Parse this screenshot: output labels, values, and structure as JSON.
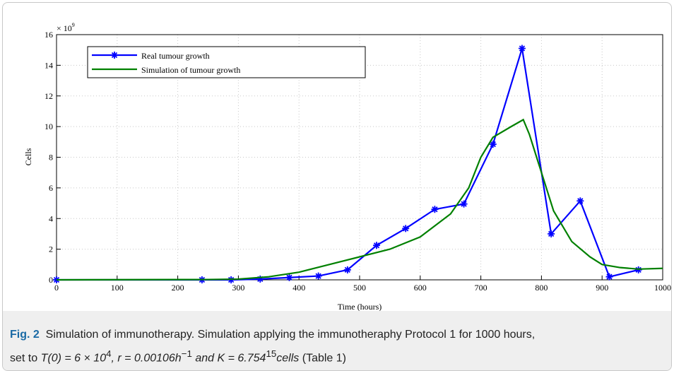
{
  "chart_data": {
    "type": "line",
    "ylabel": "Cells",
    "xlabel": "Time (hours)",
    "y_scale_base": "× 10",
    "y_scale_exp": "9",
    "xlim": [
      0,
      1000
    ],
    "xticks": [
      0,
      100,
      200,
      300,
      400,
      500,
      600,
      700,
      800,
      900,
      1000
    ],
    "ylim": [
      0,
      16
    ],
    "yticks": [
      0,
      2,
      4,
      6,
      8,
      10,
      12,
      14,
      16
    ],
    "grid": true,
    "legend": "upper left",
    "series": [
      {
        "name": "Real tumour growth",
        "color": "#0000ff",
        "marker": "asterisk",
        "x": [
          0,
          240,
          288,
          336,
          384,
          432,
          480,
          528,
          576,
          624,
          672,
          720,
          768,
          816,
          864,
          912,
          960
        ],
        "values": [
          0,
          0,
          0,
          0.05,
          0.15,
          0.25,
          0.65,
          2.25,
          3.35,
          4.6,
          4.95,
          8.85,
          15.1,
          3.0,
          5.15,
          0.2,
          0.65
        ]
      },
      {
        "name": "Simulation of tumour growth",
        "color": "#008000",
        "marker": "none",
        "x": [
          0,
          250,
          300,
          350,
          400,
          450,
          500,
          550,
          600,
          650,
          680,
          700,
          720,
          750,
          770,
          780,
          800,
          820,
          850,
          880,
          900,
          930,
          960,
          1000
        ],
        "values": [
          0,
          0.02,
          0.05,
          0.2,
          0.5,
          1.0,
          1.5,
          2.0,
          2.8,
          4.3,
          6.0,
          8.0,
          9.3,
          10.0,
          10.45,
          9.5,
          7.0,
          4.5,
          2.5,
          1.5,
          1.0,
          0.8,
          0.7,
          0.75
        ]
      }
    ]
  },
  "caption": {
    "label": "Fig. 2",
    "title": "Simulation of immunotherapy.",
    "text": "Simulation applying the immunotheraphy Protocol 1 for 1000 hours,",
    "text2": "set to",
    "t0": "T(0) = 6 × 10",
    "t0_exp": "4",
    "r": ", r = 0.00106h",
    "r_exp": "−1",
    "k": "and K = 6.754",
    "k_exp": "15",
    "k_unit": "cells",
    "ref": "(Table 1)"
  }
}
